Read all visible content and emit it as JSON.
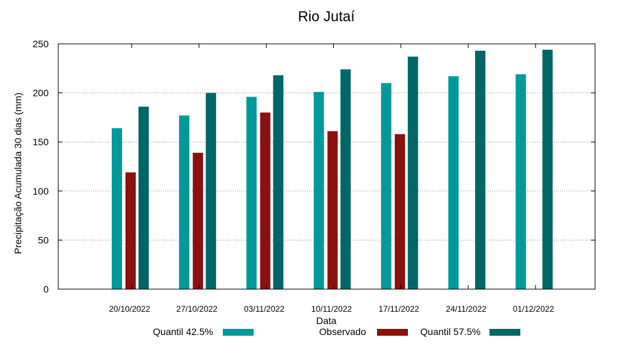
{
  "chart_data": {
    "type": "bar",
    "title": "Rio Jutaí",
    "xlabel": "Data",
    "ylabel": "Precipitação Acumulada 30 dias (mm)",
    "ylim": [
      0,
      250
    ],
    "yticks": [
      0,
      50,
      100,
      150,
      200,
      250
    ],
    "grid": "horizontal dotted",
    "legend_position": "bottom",
    "categories": [
      "20/10/2022",
      "27/10/2022",
      "03/11/2022",
      "10/11/2022",
      "17/11/2022",
      "24/11/2022",
      "01/12/2022"
    ],
    "series": [
      {
        "name": "Quantil 42.5%",
        "color": "#009999",
        "values": [
          164,
          177,
          196,
          201,
          210,
          217,
          219
        ]
      },
      {
        "name": "Observado",
        "color": "#8b1111",
        "values": [
          119,
          139,
          180,
          161,
          158,
          null,
          null
        ]
      },
      {
        "name": "Quantil 57.5%",
        "color": "#006666",
        "values": [
          186,
          200,
          218,
          224,
          237,
          243,
          244
        ]
      }
    ]
  }
}
